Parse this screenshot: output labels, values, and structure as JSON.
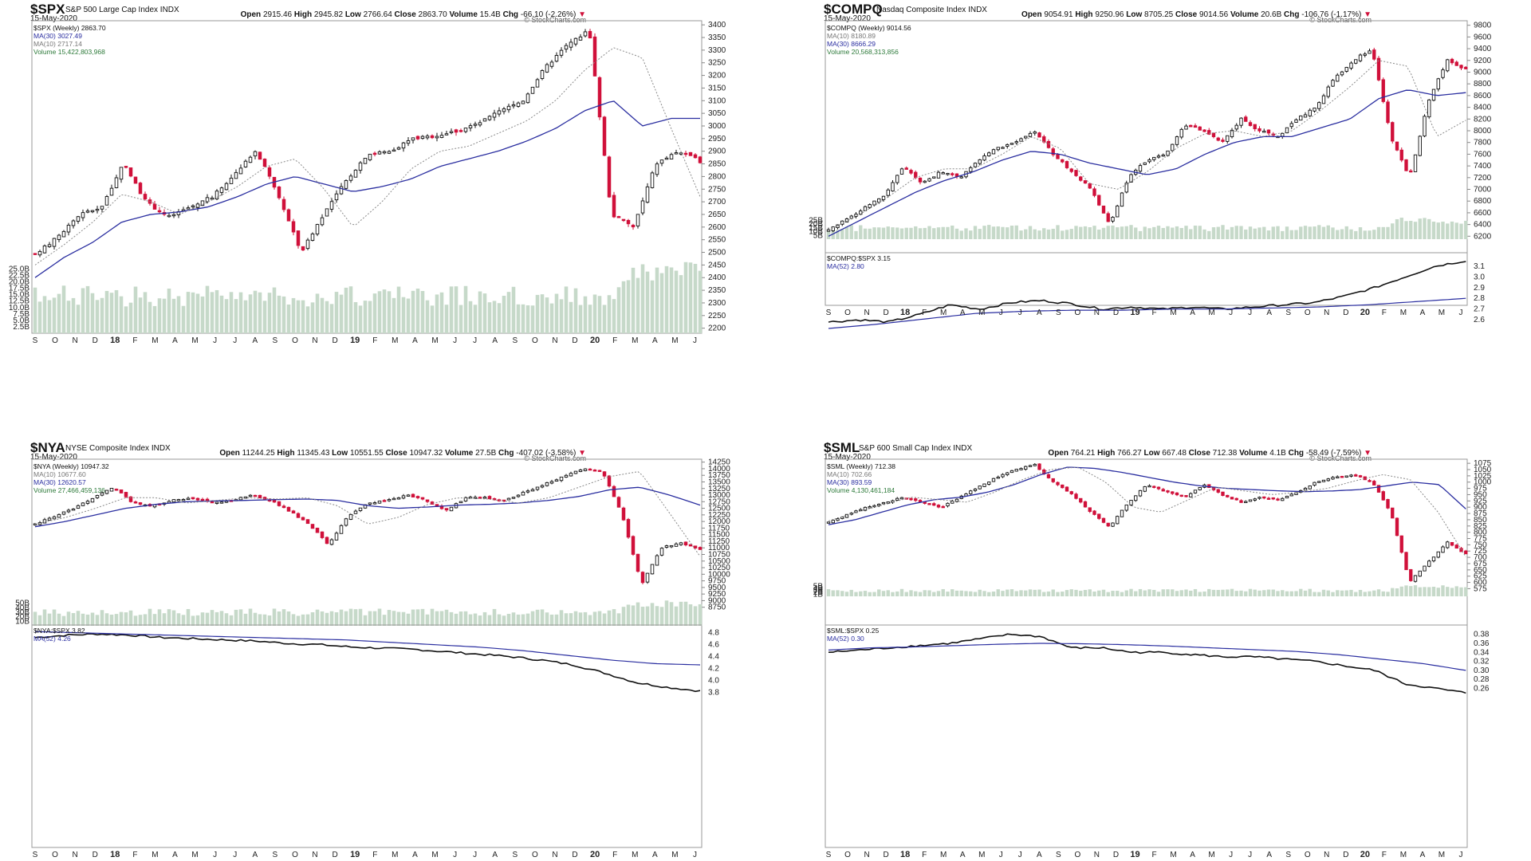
{
  "colors": {
    "up": "#111111",
    "down": "#d0103a",
    "ma30": "#2a2ea0",
    "ma10": "#8a8a8a",
    "volume": "#c6d9c9",
    "ratio": "#111111",
    "ma52": "#2a2ea0"
  },
  "chart_data": [
    {
      "type": "candlestick",
      "symbol": "$SPX",
      "description": "S&P 500 Large Cap Index",
      "suffix": "INDX",
      "date": "15-May-2020",
      "ohlc": {
        "Open": "2915.46",
        "High": "2945.82",
        "Low": "2766.64",
        "Close": "2863.70",
        "Volume": "15.4B",
        "Chg": "-66.10 (-2.26%)"
      },
      "brand": "© StockCharts.com",
      "legend": [
        "$SPX (Weekly) 2863.70",
        "MA(30) 3027.49",
        "MA(10) 2717.14",
        "Volume 15,422,803,968"
      ],
      "price_ticks": [
        2200,
        2250,
        2300,
        2350,
        2400,
        2450,
        2500,
        2550,
        2600,
        2650,
        2700,
        2750,
        2800,
        2850,
        2900,
        2950,
        3000,
        3050,
        3100,
        3150,
        3200,
        3250,
        3300,
        3350,
        3400
      ],
      "ylim": [
        2180,
        3410
      ],
      "vol_ticks": [
        "2.5B",
        "5.0B",
        "7.5B",
        "10.0B",
        "12.5B",
        "15.0B",
        "17.5B",
        "20.0B",
        "22.5B",
        "25.0B"
      ],
      "months": [
        "S",
        "O",
        "N",
        "D",
        "18",
        "F",
        "M",
        "A",
        "M",
        "J",
        "J",
        "A",
        "S",
        "O",
        "N",
        "D",
        "19",
        "F",
        "M",
        "A",
        "M",
        "J",
        "J",
        "A",
        "S",
        "O",
        "N",
        "D",
        "20",
        "F",
        "M",
        "A",
        "M",
        "J"
      ],
      "anchors": [
        2490,
        2560,
        2650,
        2680,
        2850,
        2700,
        2640,
        2680,
        2720,
        2810,
        2900,
        2720,
        2500,
        2650,
        2780,
        2890,
        2900,
        2950,
        2960,
        2980,
        3010,
        3060,
        3100,
        3230,
        3320,
        3380,
        2650,
        2600,
        2850,
        2900,
        2860
      ],
      "vol_base": 6.0,
      "ma30_pts": [
        2400,
        2480,
        2540,
        2620,
        2650,
        2660,
        2680,
        2720,
        2770,
        2800,
        2770,
        2740,
        2760,
        2790,
        2840,
        2870,
        2900,
        2940,
        2990,
        3060,
        3100,
        3000,
        3030,
        3030
      ],
      "ma10_pts": [
        2450,
        2530,
        2620,
        2730,
        2700,
        2650,
        2700,
        2760,
        2840,
        2870,
        2750,
        2600,
        2700,
        2830,
        2900,
        2920,
        2970,
        3020,
        3100,
        3220,
        3310,
        3270,
        2990,
        2720
      ]
    },
    {
      "type": "candlestick",
      "symbol": "$COMPQ",
      "description": "Nasdaq Composite Index",
      "suffix": "INDX",
      "date": "15-May-2020",
      "ohlc": {
        "Open": "9054.91",
        "High": "9250.96",
        "Low": "8705.25",
        "Close": "9014.56",
        "Volume": "20.6B",
        "Chg": "-106.76 (-1.17%)"
      },
      "brand": "© StockCharts.com",
      "legend": [
        "$COMPQ (Weekly) 9014.56",
        "MA(10) 8180.89",
        "MA(30) 8666.29",
        "Volume 20,568,313,856"
      ],
      "price_ticks": [
        6200,
        6400,
        6600,
        6800,
        7000,
        7200,
        7400,
        7600,
        7800,
        8000,
        8200,
        8400,
        8600,
        8800,
        9000,
        9200,
        9400,
        9600,
        9800
      ],
      "ylim": [
        6150,
        9850
      ],
      "vol_ticks": [
        "5B",
        "10B",
        "15B",
        "20B",
        "25B"
      ],
      "months": [
        "S",
        "O",
        "N",
        "D",
        "18",
        "F",
        "M",
        "A",
        "M",
        "J",
        "J",
        "A",
        "S",
        "O",
        "N",
        "D",
        "19",
        "F",
        "M",
        "A",
        "M",
        "J",
        "J",
        "A",
        "S",
        "O",
        "N",
        "D",
        "20",
        "F",
        "M",
        "A",
        "M",
        "J"
      ],
      "anchors": [
        6300,
        6500,
        6700,
        6900,
        7400,
        7100,
        7300,
        7200,
        7500,
        7700,
        7800,
        8000,
        7600,
        7300,
        7000,
        6400,
        7200,
        7500,
        7600,
        8100,
        8000,
        7800,
        8200,
        8000,
        7900,
        8200,
        8400,
        8900,
        9200,
        9400,
        7900,
        7200,
        8500,
        9200,
        9050
      ],
      "vol_base": 8.0,
      "ma30_pts": [
        6200,
        6450,
        6700,
        6950,
        7150,
        7300,
        7500,
        7650,
        7600,
        7450,
        7350,
        7250,
        7350,
        7600,
        7800,
        7900,
        7900,
        8050,
        8200,
        8550,
        8700,
        8600,
        8650
      ],
      "ma10_pts": [
        6300,
        6550,
        6850,
        7200,
        7350,
        7350,
        7600,
        7900,
        7700,
        7100,
        7000,
        7300,
        7700,
        7950,
        8000,
        7900,
        8000,
        8350,
        8750,
        9200,
        9100,
        7900,
        8180
      ],
      "ratio": {
        "legend": [
          "$COMPQ:$SPX 3.15",
          "MA(52) 2.80"
        ],
        "ticks": [
          2.6,
          2.7,
          2.8,
          2.9,
          3.0,
          3.1
        ],
        "ylim": [
          2.52,
          3.18
        ],
        "anchors": [
          2.58,
          2.6,
          2.58,
          2.65,
          2.74,
          2.7,
          2.76,
          2.78,
          2.75,
          2.7,
          2.72,
          2.7,
          2.72,
          2.7,
          2.72,
          2.74,
          2.76,
          2.82,
          2.9,
          3.0,
          3.1,
          3.15
        ],
        "ma52": [
          2.52,
          2.56,
          2.61,
          2.66,
          2.68,
          2.69,
          2.69,
          2.7,
          2.7,
          2.71,
          2.72,
          2.74,
          2.77,
          2.8
        ]
      }
    },
    {
      "type": "candlestick",
      "symbol": "$NYA",
      "description": "NYSE Composite Index",
      "suffix": "INDX",
      "date": "15-May-2020",
      "ohlc": {
        "Open": "11244.25",
        "High": "11345.43",
        "Low": "10551.55",
        "Close": "10947.32",
        "Volume": "27.5B",
        "Chg": "-407.02 (-3.58%)"
      },
      "brand": "© StockCharts.com",
      "legend": [
        "$NYA (Weekly) 10947.32",
        "MA(10) 10677.60",
        "MA(30) 12620.57",
        "Volume 27,466,459,136"
      ],
      "price_ticks": [
        8750,
        9000,
        9250,
        9500,
        9750,
        10000,
        10250,
        10500,
        10750,
        11000,
        11250,
        11500,
        11750,
        12000,
        12250,
        12500,
        12750,
        13000,
        13250,
        13500,
        13750,
        14000,
        14250
      ],
      "ylim": [
        8650,
        14300
      ],
      "vol_ticks": [
        "10B",
        "20B",
        "30B",
        "40B",
        "50B"
      ],
      "months": [
        "S",
        "O",
        "N",
        "D",
        "18",
        "F",
        "M",
        "A",
        "M",
        "J",
        "J",
        "A",
        "S",
        "O",
        "N",
        "D",
        "19",
        "F",
        "M",
        "A",
        "M",
        "J",
        "J",
        "A",
        "S",
        "O",
        "N",
        "D",
        "20",
        "F",
        "M",
        "A",
        "M",
        "J"
      ],
      "anchors": [
        11900,
        12200,
        12500,
        12900,
        13300,
        12700,
        12600,
        12800,
        12900,
        12700,
        12800,
        13000,
        12800,
        12400,
        11900,
        11100,
        12200,
        12700,
        12800,
        13000,
        12800,
        12400,
        12900,
        12900,
        12800,
        13100,
        13400,
        13700,
        14000,
        13900,
        12300,
        9600,
        11000,
        11200,
        10950
      ],
      "vol_base": 12.0,
      "ma30_pts": [
        11800,
        12000,
        12250,
        12500,
        12650,
        12750,
        12780,
        12800,
        12830,
        12850,
        12800,
        12600,
        12500,
        12550,
        12620,
        12650,
        12700,
        12800,
        12950,
        13200,
        13300,
        13000,
        12620
      ],
      "ma10_pts": [
        11900,
        12150,
        12500,
        12900,
        12900,
        12700,
        12800,
        12900,
        12850,
        12900,
        12600,
        11900,
        12150,
        12650,
        12900,
        12850,
        12700,
        12900,
        13300,
        13700,
        13900,
        12300,
        10677
      ],
      "ratio": {
        "legend": [
          "$NYA:$SPX 3.82",
          "MA(52) 4.26"
        ],
        "ticks": [
          3.8,
          4.0,
          4.2,
          4.4,
          4.6,
          4.8
        ],
        "ylim": [
          3.75,
          4.85
        ],
        "anchors": [
          4.72,
          4.76,
          4.78,
          4.76,
          4.72,
          4.7,
          4.68,
          4.66,
          4.62,
          4.6,
          4.56,
          4.54,
          4.52,
          4.48,
          4.44,
          4.4,
          4.34,
          4.26,
          4.12,
          3.96,
          3.88,
          3.82
        ],
        "ma52": [
          4.82,
          4.8,
          4.78,
          4.76,
          4.74,
          4.72,
          4.7,
          4.68,
          4.64,
          4.6,
          4.56,
          4.5,
          4.42,
          4.34,
          4.28,
          4.26
        ]
      }
    },
    {
      "type": "candlestick",
      "symbol": "$SML",
      "description": "S&P 600 Small Cap Index",
      "suffix": "INDX",
      "date": "15-May-2020",
      "ohlc": {
        "Open": "764.21",
        "High": "766.27",
        "Low": "667.48",
        "Close": "712.38",
        "Volume": "4.1B",
        "Chg": "-58.49 (-7.59%)"
      },
      "brand": "© StockCharts.com",
      "legend": [
        "$SML (Weekly) 712.38",
        "MA(10) 702.66",
        "MA(30) 893.59",
        "Volume 4,130,461,184"
      ],
      "price_ticks": [
        575,
        600,
        625,
        650,
        675,
        700,
        725,
        750,
        775,
        800,
        825,
        850,
        875,
        900,
        925,
        950,
        975,
        1000,
        1025,
        1050,
        1075
      ],
      "ylim": [
        570,
        1085
      ],
      "vol_ticks": [
        "1B",
        "2B",
        "3B",
        "4B",
        "5B"
      ],
      "months": [
        "S",
        "O",
        "N",
        "D",
        "18",
        "F",
        "M",
        "A",
        "M",
        "J",
        "J",
        "A",
        "S",
        "O",
        "N",
        "D",
        "19",
        "F",
        "M",
        "A",
        "M",
        "J",
        "J",
        "A",
        "S",
        "O",
        "N",
        "D",
        "20",
        "F",
        "M",
        "A",
        "M",
        "J"
      ],
      "anchors": [
        840,
        870,
        900,
        920,
        940,
        920,
        900,
        940,
        980,
        1020,
        1050,
        1070,
        1000,
        950,
        880,
        820,
        920,
        990,
        960,
        940,
        990,
        950,
        920,
        940,
        930,
        960,
        1000,
        1020,
        1030,
        1000,
        880,
        600,
        680,
        760,
        712
      ],
      "vol_base": 1.3,
      "ma30_pts": [
        830,
        850,
        880,
        910,
        930,
        940,
        960,
        990,
        1030,
        1060,
        1055,
        1040,
        1020,
        1000,
        985,
        975,
        970,
        965,
        962,
        965,
        970,
        985,
        1000,
        990,
        893
      ],
      "ma10_pts": [
        845,
        880,
        910,
        940,
        930,
        920,
        960,
        1010,
        1050,
        1060,
        1000,
        900,
        880,
        930,
        980,
        965,
        950,
        960,
        975,
        1005,
        1030,
        1010,
        880,
        702
      ],
      "ratio": {
        "legend": [
          "$SML:$SPX 0.25",
          "MA(52) 0.30"
        ],
        "ticks": [
          0.26,
          0.28,
          0.3,
          0.32,
          0.34,
          0.36,
          0.38
        ],
        "ylim": [
          0.245,
          0.39
        ],
        "anchors": [
          0.34,
          0.345,
          0.35,
          0.355,
          0.36,
          0.37,
          0.38,
          0.375,
          0.35,
          0.35,
          0.34,
          0.34,
          0.335,
          0.33,
          0.33,
          0.325,
          0.32,
          0.31,
          0.3,
          0.27,
          0.26,
          0.25
        ],
        "ma52": [
          0.345,
          0.35,
          0.352,
          0.355,
          0.358,
          0.36,
          0.359,
          0.357,
          0.354,
          0.35,
          0.346,
          0.342,
          0.335,
          0.325,
          0.315,
          0.3
        ]
      }
    }
  ]
}
